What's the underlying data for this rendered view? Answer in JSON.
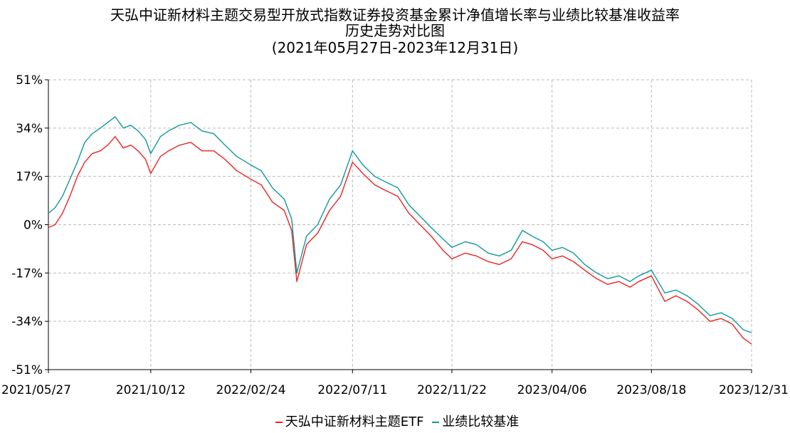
{
  "title_line1": "天弘中证新材料主题交易型开放式指数证券投资基金累计净值增长率与业绩比较基准收益率",
  "title_line2": "历史走势对比图",
  "title_line3": "(2021年05月27日-2023年12月31日)",
  "colors": {
    "fund": "#ee2222",
    "benchmark": "#119999",
    "grid": "#bbbbbb",
    "axis": "#000000"
  },
  "chart_data": {
    "type": "line",
    "title": "天弘中证新材料主题交易型开放式指数证券投资基金累计净值增长率与业绩比较基准收益率历史走势对比图",
    "xlabel": "",
    "ylabel": "",
    "ylim": [
      -51,
      51
    ],
    "yticks": [
      "51%",
      "34%",
      "17%",
      "0%",
      "-17%",
      "-34%",
      "-51%"
    ],
    "ytick_values": [
      51,
      34,
      17,
      0,
      -17,
      -34,
      -51
    ],
    "xticks": [
      "2021/05/27",
      "2021/10/12",
      "2022/02/24",
      "2022/07/11",
      "2022/11/22",
      "2023/04/06",
      "2023/08/18",
      "2023/12/31"
    ],
    "grid": true,
    "legend_position": "bottom",
    "series": [
      {
        "name": "天弘中证新材料主题ETF",
        "x": [
          "2021/05/27",
          "2021/06/05",
          "2021/06/15",
          "2021/06/25",
          "2021/07/05",
          "2021/07/15",
          "2021/07/25",
          "2021/08/05",
          "2021/08/15",
          "2021/08/25",
          "2021/09/05",
          "2021/09/15",
          "2021/09/25",
          "2021/10/05",
          "2021/10/12",
          "2021/10/25",
          "2021/11/05",
          "2021/11/20",
          "2021/12/05",
          "2021/12/20",
          "2022/01/05",
          "2022/01/20",
          "2022/02/05",
          "2022/02/24",
          "2022/03/10",
          "2022/03/25",
          "2022/04/10",
          "2022/04/20",
          "2022/04/27",
          "2022/05/10",
          "2022/05/25",
          "2022/06/10",
          "2022/06/25",
          "2022/07/11",
          "2022/07/25",
          "2022/08/10",
          "2022/08/25",
          "2022/09/10",
          "2022/09/25",
          "2022/10/10",
          "2022/10/25",
          "2022/11/10",
          "2022/11/22",
          "2022/12/10",
          "2022/12/25",
          "2023/01/10",
          "2023/01/25",
          "2023/02/10",
          "2023/02/25",
          "2023/03/10",
          "2023/03/25",
          "2023/04/06",
          "2023/04/20",
          "2023/05/05",
          "2023/05/20",
          "2023/06/05",
          "2023/06/20",
          "2023/07/05",
          "2023/07/20",
          "2023/08/01",
          "2023/08/18",
          "2023/09/05",
          "2023/09/20",
          "2023/10/05",
          "2023/10/20",
          "2023/11/05",
          "2023/11/20",
          "2023/12/05",
          "2023/12/20",
          "2023/12/31"
        ],
        "values": [
          -1,
          0,
          4,
          10,
          17,
          22,
          25,
          26,
          28,
          31,
          27,
          28,
          26,
          23,
          18,
          24,
          26,
          28,
          29,
          26,
          26,
          23,
          19,
          16,
          14,
          8,
          5,
          -2,
          -20,
          -7,
          -3,
          5,
          10,
          22,
          18,
          14,
          12,
          10,
          4,
          0,
          -4,
          -9,
          -12,
          -10,
          -11,
          -13,
          -14,
          -12,
          -6,
          -7,
          -9,
          -12,
          -11,
          -13,
          -16,
          -19,
          -21,
          -20,
          -22,
          -20,
          -18,
          -27,
          -25,
          -27,
          -30,
          -34,
          -33,
          -35,
          -40,
          -42
        ]
      },
      {
        "name": "业绩比较基准",
        "x": [
          "2021/05/27",
          "2021/06/05",
          "2021/06/15",
          "2021/06/25",
          "2021/07/05",
          "2021/07/15",
          "2021/07/25",
          "2021/08/05",
          "2021/08/15",
          "2021/08/25",
          "2021/09/05",
          "2021/09/15",
          "2021/09/25",
          "2021/10/05",
          "2021/10/12",
          "2021/10/25",
          "2021/11/05",
          "2021/11/20",
          "2021/12/05",
          "2021/12/20",
          "2022/01/05",
          "2022/01/20",
          "2022/02/05",
          "2022/02/24",
          "2022/03/10",
          "2022/03/25",
          "2022/04/10",
          "2022/04/20",
          "2022/04/27",
          "2022/05/10",
          "2022/05/25",
          "2022/06/10",
          "2022/06/25",
          "2022/07/11",
          "2022/07/25",
          "2022/08/10",
          "2022/08/25",
          "2022/09/10",
          "2022/09/25",
          "2022/10/10",
          "2022/10/25",
          "2022/11/10",
          "2022/11/22",
          "2022/12/10",
          "2022/12/25",
          "2023/01/10",
          "2023/01/25",
          "2023/02/10",
          "2023/02/25",
          "2023/03/10",
          "2023/03/25",
          "2023/04/06",
          "2023/04/20",
          "2023/05/05",
          "2023/05/20",
          "2023/06/05",
          "2023/06/20",
          "2023/07/05",
          "2023/07/20",
          "2023/08/01",
          "2023/08/18",
          "2023/09/05",
          "2023/09/20",
          "2023/10/05",
          "2023/10/20",
          "2023/11/05",
          "2023/11/20",
          "2023/12/05",
          "2023/12/20",
          "2023/12/31"
        ],
        "values": [
          4,
          6,
          10,
          16,
          22,
          29,
          32,
          34,
          36,
          38,
          34,
          35,
          33,
          30,
          25,
          31,
          33,
          35,
          36,
          33,
          32,
          28,
          24,
          21,
          19,
          13,
          9,
          2,
          -17,
          -4,
          0,
          9,
          14,
          26,
          21,
          17,
          15,
          13,
          7,
          3,
          -1,
          -5,
          -8,
          -6,
          -7,
          -10,
          -11,
          -9,
          -2,
          -4,
          -6,
          -9,
          -8,
          -10,
          -14,
          -17,
          -19,
          -18,
          -20,
          -18,
          -16,
          -24,
          -23,
          -25,
          -28,
          -32,
          -31,
          -33,
          -37,
          -38
        ]
      }
    ]
  }
}
